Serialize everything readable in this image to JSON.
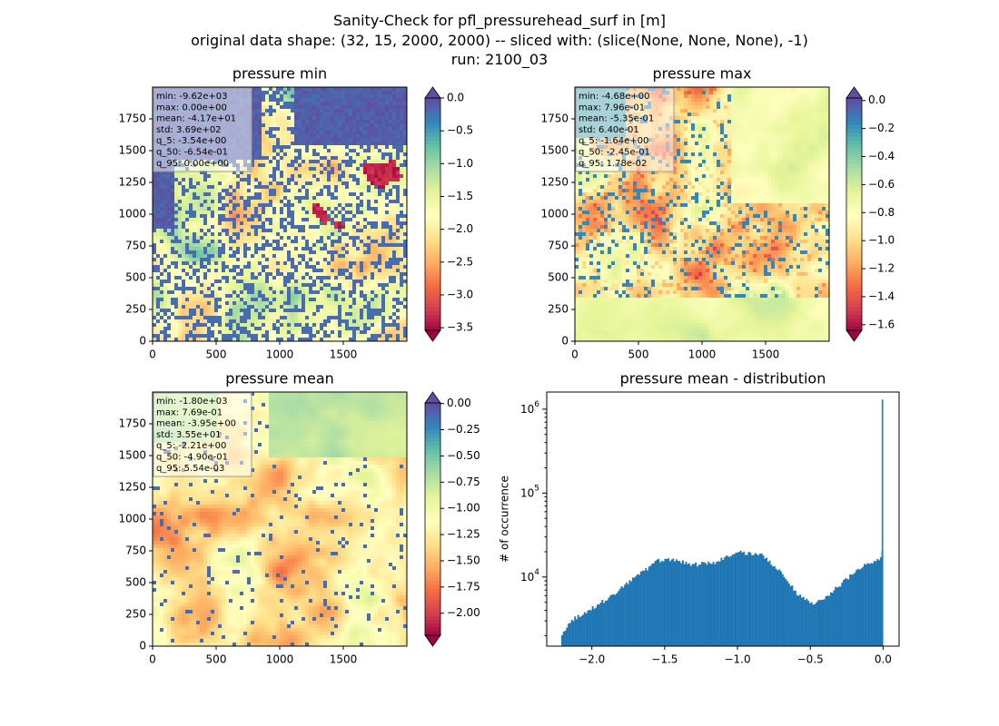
{
  "figure": {
    "title_line1": "Sanity-Check for pfl_pressurehead_surf in [m]",
    "title_line2": "original data shape: (32, 15, 2000, 2000) -- sliced with: (slice(None, None, None), -1)",
    "title_line3": "run: 2100_03"
  },
  "colors": {
    "spectral": [
      "#9e0142",
      "#d53e4f",
      "#f46d43",
      "#fdae61",
      "#fee08b",
      "#ffffbf",
      "#e6f598",
      "#abdda4",
      "#66c2a5",
      "#3288bd",
      "#5e4fa2"
    ],
    "histogram_bar": "#1f77b4"
  },
  "chart_data": [
    {
      "type": "heatmap",
      "title": "pressure min",
      "x_ticks": [
        "0",
        "500",
        "1000",
        "1500"
      ],
      "y_ticks": [
        "0",
        "250",
        "500",
        "750",
        "1000",
        "1250",
        "1500",
        "1750"
      ],
      "xlim": [
        0,
        2000
      ],
      "ylim": [
        0,
        2000
      ],
      "colorbar": {
        "vmin": -3.54,
        "vmax": 0.0,
        "ticks": [
          "0.0",
          "−0.5",
          "−1.0",
          "−1.5",
          "−2.0",
          "−2.5",
          "−3.0",
          "−3.5"
        ],
        "tick_values": [
          0.0,
          -0.5,
          -1.0,
          -1.5,
          -2.0,
          -2.5,
          -3.0,
          -3.5
        ],
        "extend": "both"
      },
      "stats": [
        "min: -9.62e+03",
        "max: 0.00e+00",
        "mean: -4.17e+01",
        "std: 3.69e+02",
        "q_5: -3.54e+00",
        "q_50: -6.54e-01",
        "q_95: 0.00e+00"
      ]
    },
    {
      "type": "heatmap",
      "title": "pressure max",
      "x_ticks": [
        "0",
        "500",
        "1000",
        "1500"
      ],
      "y_ticks": [
        "0",
        "250",
        "500",
        "750",
        "1000",
        "1250",
        "1500",
        "1750"
      ],
      "xlim": [
        0,
        2000
      ],
      "ylim": [
        0,
        2000
      ],
      "colorbar": {
        "vmin": -1.64,
        "vmax": 0.0178,
        "ticks": [
          "0.0",
          "−0.2",
          "−0.4",
          "−0.6",
          "−0.8",
          "−1.0",
          "−1.2",
          "−1.4",
          "−1.6"
        ],
        "tick_values": [
          0.0,
          -0.2,
          -0.4,
          -0.6,
          -0.8,
          -1.0,
          -1.2,
          -1.4,
          -1.6
        ],
        "extend": "both"
      },
      "stats": [
        "min: -4.68e+00",
        "max: 7.96e-01",
        "mean: -5.35e-01",
        "std: 6.40e-01",
        "q_5: -1.64e+00",
        "q_50: -2.45e-01",
        "q_95: 1.78e-02"
      ]
    },
    {
      "type": "heatmap",
      "title": "pressure mean",
      "x_ticks": [
        "0",
        "500",
        "1000",
        "1500"
      ],
      "y_ticks": [
        "0",
        "250",
        "500",
        "750",
        "1000",
        "1250",
        "1500",
        "1750"
      ],
      "xlim": [
        0,
        2000
      ],
      "ylim": [
        0,
        2000
      ],
      "colorbar": {
        "vmin": -2.21,
        "vmax": 0.00554,
        "ticks": [
          "0.00",
          "−0.25",
          "−0.50",
          "−0.75",
          "−1.00",
          "−1.25",
          "−1.50",
          "−1.75",
          "−2.00"
        ],
        "tick_values": [
          0.0,
          -0.25,
          -0.5,
          -0.75,
          -1.0,
          -1.25,
          -1.5,
          -1.75,
          -2.0
        ],
        "extend": "both"
      },
      "stats": [
        "min: -1.80e+03",
        "max: 7.69e-01",
        "mean: -3.95e+00",
        "std: 3.55e+01",
        "q_5: -2.21e+00",
        "q_50: -4.90e-01",
        "q_95: 5.54e-03"
      ]
    },
    {
      "type": "bar",
      "title": "pressure mean - distribution",
      "ylabel": "# of occurrence",
      "xlabel": "",
      "yscale": "log",
      "xlim": [
        -2.31,
        0.11
      ],
      "ylim": [
        1500,
        1600000
      ],
      "x_ticks": [
        "−2.0",
        "−1.5",
        "−1.0",
        "−0.5",
        "0.0"
      ],
      "x_tick_values": [
        -2.0,
        -1.5,
        -1.0,
        -0.5,
        0.0
      ],
      "y_ticks": [
        "10^4",
        "10^5",
        "10^6"
      ],
      "y_tick_values": [
        10000,
        100000,
        1000000
      ],
      "bins": [
        -2.21,
        0.0
      ],
      "curve": [
        [
          -2.21,
          2000
        ],
        [
          -2.15,
          3000
        ],
        [
          -2.0,
          4200
        ],
        [
          -1.85,
          6200
        ],
        [
          -1.7,
          10000
        ],
        [
          -1.55,
          15500
        ],
        [
          -1.45,
          16500
        ],
        [
          -1.3,
          14000
        ],
        [
          -1.15,
          15000
        ],
        [
          -1.0,
          19500
        ],
        [
          -0.85,
          19000
        ],
        [
          -0.7,
          11500
        ],
        [
          -0.58,
          6000
        ],
        [
          -0.48,
          4800
        ],
        [
          -0.38,
          6000
        ],
        [
          -0.25,
          9500
        ],
        [
          -0.12,
          14500
        ],
        [
          -0.05,
          15500
        ],
        [
          -0.01,
          17000
        ],
        [
          0.0,
          24000
        ]
      ],
      "spike": {
        "x": -0.003,
        "value": 1300000
      }
    }
  ]
}
